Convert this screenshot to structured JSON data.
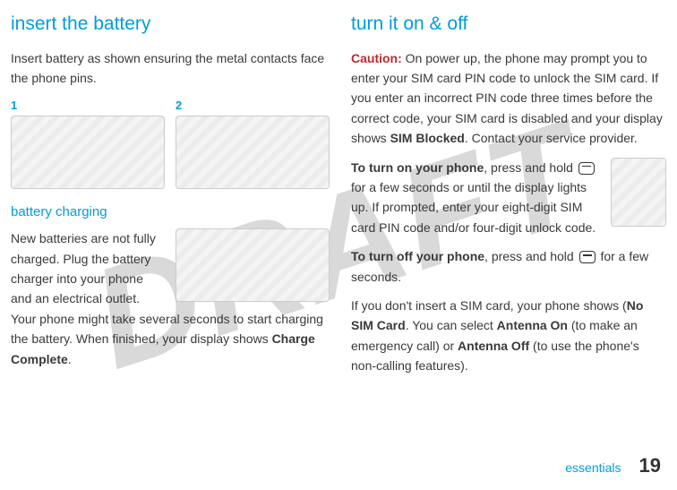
{
  "watermark": "DRAFT",
  "left": {
    "heading_insert": "insert the battery",
    "insert_p": "Insert battery as shown ensuring the metal contacts face the phone pins.",
    "step1": "1",
    "step2": "2",
    "heading_charging": "battery charging",
    "charging_p1": "New batteries are not fully charged. Plug the battery charger into your phone and an electrical outlet. Your phone might take several seconds to start charging the battery. When finished, your display shows ",
    "charge_complete": "Charge Complete",
    "period": "."
  },
  "right": {
    "heading_turn": "turn it on & off",
    "caution_label": "Caution:",
    "caution_p": " On power up, the phone may prompt you to enter your SIM card PIN code to unlock the SIM card. If you enter an incorrect PIN code three times before the correct code, your SIM card is disabled and your display shows ",
    "sim_blocked": "SIM Blocked",
    "caution_tail": ". Contact your service provider.",
    "turn_on_b": "To turn on your phone",
    "turn_on_p1": ", press and hold ",
    "turn_on_p2": " for a few seconds or until the display lights up. If prompted, enter your eight-digit SIM card PIN code and/or four-digit unlock code.",
    "turn_off_b": "To turn off your phone",
    "turn_off_p1": ", press and hold ",
    "turn_off_p2": " for a few seconds.",
    "nosim_p1": "If you don't insert a SIM card, your phone shows (",
    "nosim_b1": "No SIM Card",
    "nosim_p2": ". You can select ",
    "nosim_b2": "Antenna On",
    "nosim_p3": " (to make an emergency call) or ",
    "nosim_b3": "Antenna Off",
    "nosim_p4": " (to use the phone's non-calling features)."
  },
  "footer": {
    "section": "essentials",
    "page": "19"
  }
}
